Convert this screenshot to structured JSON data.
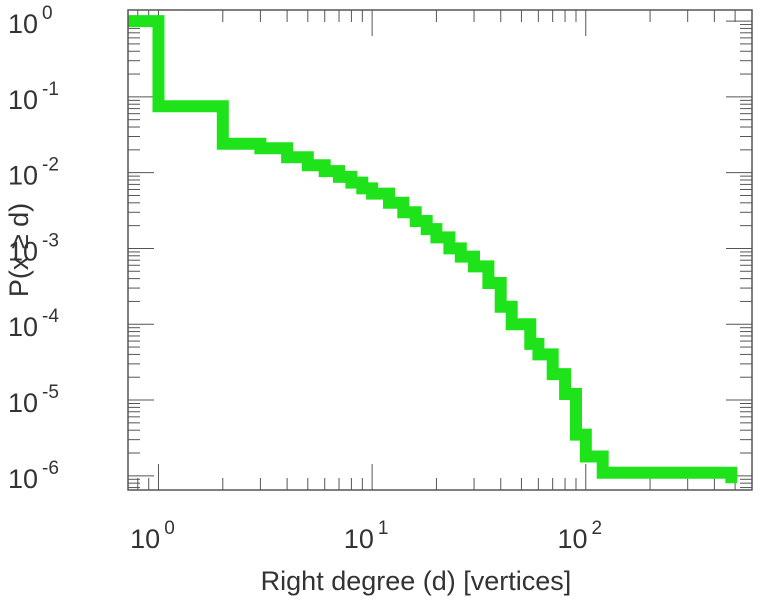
{
  "chart_data": {
    "type": "line",
    "step": true,
    "log_x": true,
    "log_y": true,
    "xlabel": "Right degree (d) [vertices]",
    "ylabel": "P(x ≥ d)",
    "xlim": [
      0.72,
      600
    ],
    "ylim": [
      6.5e-07,
      1.4
    ],
    "x_ticks": [
      {
        "value": 1,
        "base": "10",
        "exp": "0"
      },
      {
        "value": 10,
        "base": "10",
        "exp": "1"
      },
      {
        "value": 100,
        "base": "10",
        "exp": "2"
      }
    ],
    "y_ticks": [
      {
        "value": 1,
        "base": "10",
        "exp": "0"
      },
      {
        "value": 0.1,
        "base": "10",
        "exp": "-1"
      },
      {
        "value": 0.01,
        "base": "10",
        "exp": "-2"
      },
      {
        "value": 0.001,
        "base": "10",
        "exp": "-3"
      },
      {
        "value": 0.0001,
        "base": "10",
        "exp": "-4"
      },
      {
        "value": 1e-05,
        "base": "10",
        "exp": "-5"
      },
      {
        "value": 1e-06,
        "base": "10",
        "exp": "-6"
      }
    ],
    "grid": false,
    "color": "#1ee31a",
    "series": [
      {
        "x": [
          0.72,
          1,
          2,
          3,
          4,
          5,
          6,
          7,
          8,
          9,
          10,
          12,
          14,
          16,
          18,
          20,
          23,
          26,
          30,
          35,
          40,
          45,
          55,
          60,
          70,
          80,
          90,
          100,
          120,
          480
        ],
        "y": [
          1.0,
          0.075,
          0.024,
          0.021,
          0.016,
          0.0125,
          0.0105,
          0.0088,
          0.0074,
          0.0062,
          0.0053,
          0.004,
          0.003,
          0.0023,
          0.0018,
          0.0014,
          0.001,
          0.00078,
          0.00058,
          0.00035,
          0.00017,
          0.0001,
          5.5e-05,
          4e-05,
          2.2e-05,
          1.2e-05,
          3.5e-06,
          1.8e-06,
          1.1e-06,
          8e-07
        ]
      }
    ]
  }
}
